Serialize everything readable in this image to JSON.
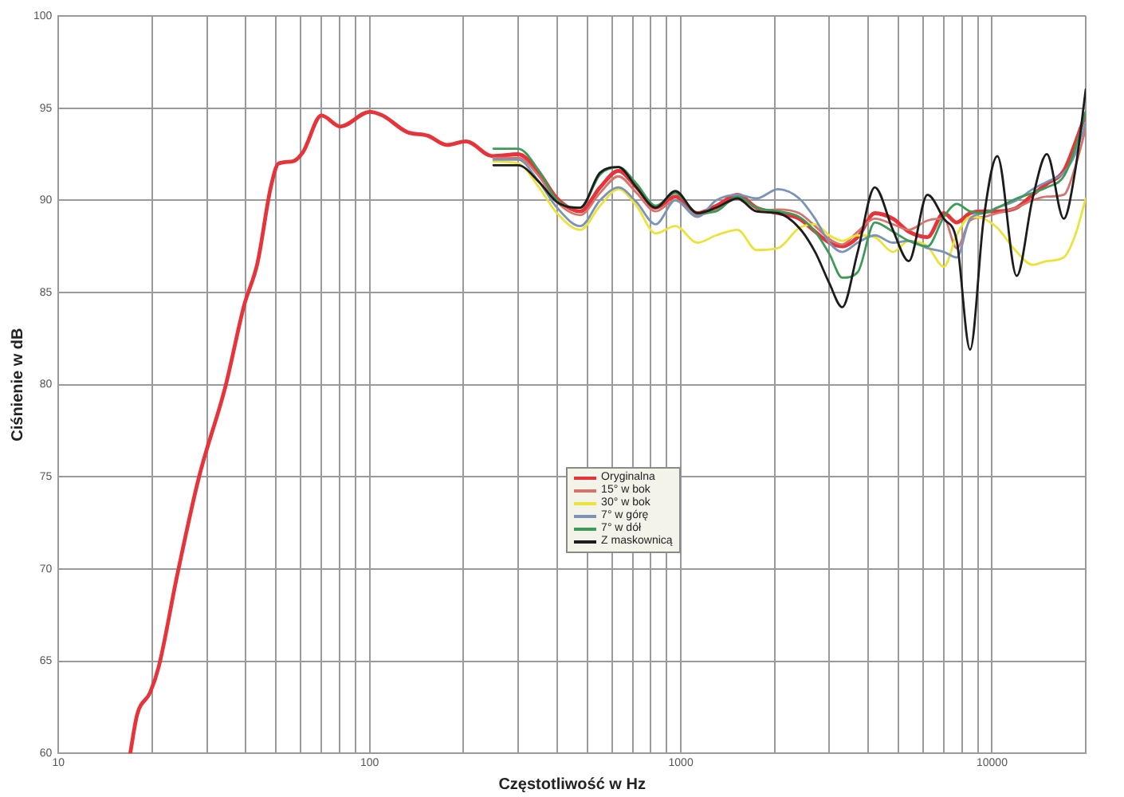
{
  "chart_data": {
    "type": "line",
    "xlabel": "Częstotliwość w Hz",
    "ylabel": "Ciśnienie w dB",
    "log": "x",
    "grid": true,
    "legend": "center",
    "marker": "none",
    "xlim": [
      10,
      20000
    ],
    "xticks": [
      10,
      {
        "value": 20,
        "label": null
      },
      {
        "value": 30,
        "label": null
      },
      {
        "value": 40,
        "label": null
      },
      {
        "value": 50,
        "label": null
      },
      {
        "value": 60,
        "label": null
      },
      {
        "value": 70,
        "label": null
      },
      {
        "value": 80,
        "label": null
      },
      {
        "value": 90,
        "label": null
      },
      100,
      {
        "value": 200,
        "label": null
      },
      {
        "value": 300,
        "label": null
      },
      {
        "value": 400,
        "label": null
      },
      {
        "value": 500,
        "label": null
      },
      {
        "value": 600,
        "label": null
      },
      {
        "value": 700,
        "label": null
      },
      {
        "value": 800,
        "label": null
      },
      {
        "value": 900,
        "label": null
      },
      1000,
      {
        "value": 2000,
        "label": null
      },
      {
        "value": 3000,
        "label": null
      },
      {
        "value": 4000,
        "label": null
      },
      {
        "value": 5000,
        "label": null
      },
      {
        "value": 6000,
        "label": null
      },
      {
        "value": 7000,
        "label": null
      },
      {
        "value": 8000,
        "label": null
      },
      {
        "value": 9000,
        "label": null
      },
      10000,
      {
        "value": 20000,
        "label": null
      }
    ],
    "ylim": [
      60,
      100
    ],
    "yticks": [
      60,
      65,
      70,
      75,
      80,
      85,
      90,
      95,
      100
    ],
    "series": [
      {
        "name": "Oryginalna",
        "color": "#e5343a",
        "x": [
          17.0,
          17.9,
          19.7,
          21.0,
          24.1,
          28.2,
          34.4,
          39.5,
          43.6,
          48.1,
          51.0,
          56.4,
          61.0,
          70.0,
          80.5,
          100,
          110,
          132,
          154,
          177,
          204,
          248,
          300,
          350,
          400,
          475,
          550,
          630,
          720,
          830,
          960,
          1130,
          1300,
          1520,
          1750,
          2050,
          2400,
          2700,
          3000,
          3300,
          3700,
          4200,
          4800,
          5400,
          6200,
          7000,
          7700,
          8500,
          9400,
          10400,
          12000,
          13500,
          15000,
          17000,
          18500,
          20000
        ],
        "values": [
          60.0,
          62.1,
          63.3,
          64.7,
          69.7,
          74.9,
          79.9,
          84.3,
          86.6,
          90.7,
          92.0,
          92.1,
          92.6,
          94.6,
          94.0,
          94.8,
          94.6,
          93.7,
          93.5,
          93.0,
          93.2,
          92.4,
          92.5,
          91.5,
          90.1,
          89.4,
          90.7,
          91.6,
          90.7,
          89.6,
          90.2,
          89.3,
          89.7,
          90.3,
          89.6,
          89.3,
          89.0,
          88.3,
          87.7,
          87.5,
          88.0,
          89.3,
          89.0,
          88.3,
          88.0,
          89.3,
          88.8,
          89.3,
          89.4,
          89.4,
          89.6,
          90.3,
          90.9,
          91.6,
          93.1,
          94.7
        ]
      },
      {
        "name": "15° w bok",
        "color": "#d4746c",
        "x": [
          250,
          300,
          350,
          400,
          475,
          550,
          630,
          720,
          830,
          960,
          1130,
          1300,
          1520,
          1750,
          2050,
          2400,
          2700,
          3000,
          3300,
          3700,
          4200,
          4800,
          5400,
          6200,
          7000,
          7700,
          8500,
          9400,
          10400,
          12000,
          13500,
          15000,
          17000,
          18500,
          20000
        ],
        "values": [
          92.3,
          92.3,
          91.3,
          89.9,
          89.2,
          90.4,
          91.3,
          90.4,
          89.4,
          90.0,
          89.2,
          89.5,
          90.1,
          89.4,
          89.5,
          89.3,
          88.6,
          87.9,
          87.6,
          88.3,
          89.0,
          88.7,
          88.4,
          88.9,
          89.0,
          87.4,
          88.9,
          89.1,
          89.3,
          89.6,
          90.0,
          90.2,
          90.3,
          91.8,
          93.9
        ]
      },
      {
        "name": "30° w bok",
        "color": "#ece23c",
        "x": [
          250,
          300,
          350,
          400,
          475,
          550,
          630,
          720,
          830,
          960,
          1130,
          1300,
          1520,
          1750,
          2050,
          2400,
          2700,
          3000,
          3300,
          3700,
          4200,
          4800,
          5400,
          6200,
          7000,
          7700,
          8500,
          9400,
          10400,
          12000,
          13500,
          15000,
          17000,
          18500,
          20000
        ],
        "values": [
          92.1,
          92.0,
          90.7,
          89.3,
          88.4,
          89.7,
          90.6,
          89.7,
          88.2,
          88.6,
          87.7,
          88.1,
          88.4,
          87.3,
          87.4,
          88.5,
          88.7,
          88.1,
          87.8,
          88.1,
          88.0,
          87.2,
          87.8,
          87.5,
          86.4,
          88.1,
          89.1,
          89.0,
          88.5,
          87.2,
          86.5,
          86.7,
          86.9,
          88.1,
          90.1
        ]
      },
      {
        "name": "7° w górę",
        "color": "#7b93b6",
        "x": [
          250,
          300,
          350,
          400,
          475,
          550,
          630,
          720,
          830,
          960,
          1130,
          1300,
          1520,
          1750,
          2050,
          2400,
          2700,
          3000,
          3300,
          3700,
          4200,
          4800,
          5400,
          6200,
          7000,
          7700,
          8500,
          9400,
          10400,
          12000,
          13500,
          15000,
          17000,
          18500,
          20000
        ],
        "values": [
          92.2,
          92.2,
          91.0,
          89.6,
          88.6,
          90.0,
          90.7,
          89.9,
          88.7,
          90.0,
          89.1,
          90.0,
          90.3,
          90.1,
          90.6,
          90.1,
          89.0,
          87.7,
          87.2,
          87.7,
          88.1,
          87.7,
          87.8,
          87.4,
          87.2,
          86.9,
          89.0,
          89.3,
          89.6,
          90.0,
          90.6,
          91.0,
          91.5,
          92.5,
          94.2
        ]
      },
      {
        "name": "7° w dół",
        "color": "#3d9a58",
        "x": [
          250,
          300,
          350,
          400,
          475,
          550,
          630,
          720,
          830,
          960,
          1130,
          1300,
          1520,
          1750,
          2050,
          2400,
          2700,
          3000,
          3300,
          3700,
          4200,
          4800,
          5400,
          6200,
          7000,
          7700,
          8500,
          9400,
          10400,
          12000,
          13500,
          15000,
          17000,
          18500,
          20000
        ],
        "values": [
          92.8,
          92.8,
          91.6,
          90.0,
          89.6,
          91.4,
          91.8,
          90.9,
          89.7,
          90.4,
          89.3,
          89.4,
          90.2,
          89.6,
          89.4,
          89.1,
          88.3,
          87.1,
          85.8,
          86.1,
          88.8,
          88.3,
          87.8,
          87.5,
          89.1,
          89.8,
          89.4,
          89.3,
          89.6,
          90.1,
          90.4,
          90.7,
          91.3,
          92.8,
          94.8
        ]
      },
      {
        "name": "Z maskownicą",
        "color": "#1c1c1c",
        "x": [
          250,
          300,
          350,
          400,
          475,
          550,
          630,
          720,
          830,
          960,
          1130,
          1300,
          1520,
          1750,
          2050,
          2400,
          2700,
          3000,
          3300,
          3700,
          4200,
          4800,
          5400,
          6200,
          7000,
          7700,
          8500,
          9400,
          10400,
          12000,
          13500,
          15000,
          17000,
          18500,
          20000
        ],
        "values": [
          91.9,
          91.9,
          91.0,
          89.9,
          89.6,
          91.5,
          91.8,
          90.7,
          89.6,
          90.5,
          89.3,
          89.6,
          90.1,
          89.4,
          89.3,
          88.5,
          87.2,
          85.5,
          84.2,
          87.2,
          90.7,
          88.4,
          86.7,
          90.3,
          89.0,
          87.8,
          81.9,
          89.0,
          92.4,
          85.9,
          90.1,
          92.5,
          89.0,
          91.6,
          96.0
        ]
      }
    ]
  }
}
